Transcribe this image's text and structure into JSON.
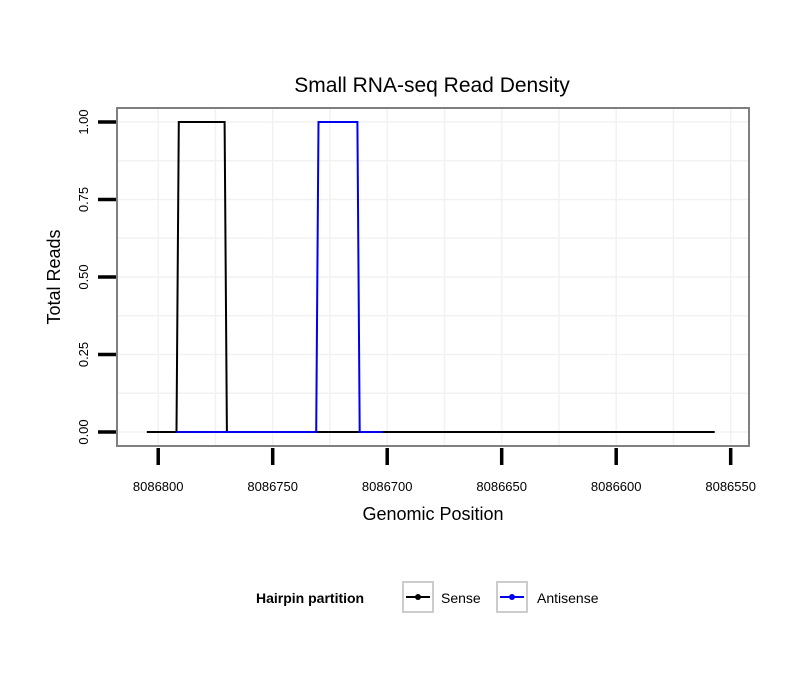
{
  "chart_data": {
    "type": "line",
    "title": "Small RNA-seq Read Density",
    "xlabel": "Genomic Position",
    "ylabel": "Total Reads",
    "x_reversed": true,
    "xlim": [
      8086818,
      8086542
    ],
    "ylim": [
      -0.045,
      1.045
    ],
    "xticks": [
      8086800,
      8086750,
      8086700,
      8086650,
      8086600,
      8086550
    ],
    "xtick_labels": [
      "8086800",
      "8086750",
      "8086700",
      "8086650",
      "8086600",
      "8086550"
    ],
    "yticks": [
      0,
      0.25,
      0.5,
      0.75,
      1.0
    ],
    "ytick_labels": [
      "0.00",
      "0.25",
      "0.50",
      "0.75",
      "1.00"
    ],
    "grid": true,
    "legend": {
      "title": "Hairpin partition",
      "position": "bottom",
      "entries": [
        {
          "label": "Sense",
          "color": "#000000"
        },
        {
          "label": "Antisense",
          "color": "#0000ee"
        }
      ]
    },
    "series": [
      {
        "name": "Sense",
        "color": "#000000",
        "x": [
          8086805,
          8086792,
          8086791,
          8086771,
          8086770,
          8086557
        ],
        "y": [
          0,
          0,
          1,
          1,
          0,
          0
        ]
      },
      {
        "name": "Antisense",
        "color": "#0000ee",
        "x": [
          8086792,
          8086731,
          8086730,
          8086713,
          8086712,
          8086702
        ],
        "y": [
          0,
          0,
          1,
          1,
          0,
          0
        ]
      }
    ]
  }
}
